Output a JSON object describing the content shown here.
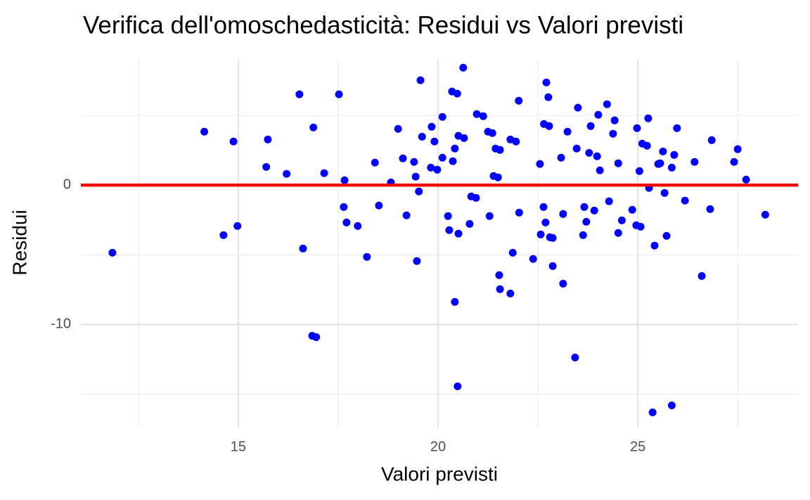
{
  "chart_data": {
    "type": "scatter",
    "title": "Verifica dell'omoschedasticità: Residui vs Valori previsti",
    "x_label": "Valori previsti",
    "y_label": "Residui",
    "xlim": [
      11.06,
      29.01
    ],
    "ylim": [
      -17.4,
      9.0
    ],
    "xticks": [
      15,
      20,
      25
    ],
    "yticks": [
      -10,
      0
    ],
    "x_minor_grid": [
      12.5,
      17.5,
      22.5,
      27.5
    ],
    "y_minor_grid": [
      -15,
      -5,
      5
    ],
    "grid": true,
    "hline": {
      "value": 0,
      "color": "#ff0000"
    },
    "series": [
      {
        "color": "#0000ff",
        "x": [
          11.85,
          14.15,
          14.63,
          14.88,
          14.98,
          15.7,
          15.74,
          16.21,
          16.53,
          16.62,
          16.88,
          16.85,
          16.95,
          17.15,
          17.52,
          17.66,
          17.64,
          17.71,
          17.99,
          18.22,
          18.42,
          18.52,
          18.82,
          19.0,
          19.12,
          19.21,
          19.4,
          19.44,
          19.47,
          19.56,
          19.52,
          19.6,
          19.84,
          19.82,
          19.91,
          19.98,
          20.11,
          20.11,
          20.25,
          20.28,
          20.35,
          20.37,
          20.42,
          20.42,
          20.48,
          20.51,
          20.51,
          20.49,
          20.63,
          20.65,
          20.79,
          20.83,
          20.95,
          20.97,
          21.13,
          21.25,
          21.36,
          21.29,
          21.39,
          21.44,
          21.5,
          21.53,
          21.55,
          21.55,
          21.81,
          21.81,
          21.87,
          21.95,
          22.02,
          22.03,
          22.38,
          22.55,
          22.57,
          22.64,
          22.65,
          22.69,
          22.71,
          22.76,
          22.78,
          22.8,
          22.87,
          22.87,
          23.08,
          23.13,
          23.13,
          23.24,
          23.43,
          23.47,
          23.5,
          23.63,
          23.66,
          23.71,
          23.78,
          23.82,
          23.91,
          23.98,
          24.01,
          24.05,
          24.23,
          24.28,
          24.38,
          24.42,
          24.51,
          24.51,
          24.6,
          24.86,
          24.98,
          24.96,
          25.04,
          25.07,
          25.11,
          25.23,
          25.26,
          25.28,
          25.37,
          25.42,
          25.51,
          25.56,
          25.63,
          25.67,
          25.72,
          25.85,
          25.85,
          25.91,
          25.98,
          26.18,
          26.42,
          26.6,
          26.81,
          26.85,
          27.41,
          27.5,
          27.71,
          28.19
        ],
        "values": [
          -4.85,
          3.84,
          -3.59,
          3.13,
          -2.93,
          1.31,
          3.28,
          0.81,
          6.52,
          -4.55,
          4.14,
          -10.81,
          -10.91,
          0.86,
          6.52,
          0.35,
          -1.57,
          -2.68,
          -2.93,
          -5.15,
          1.62,
          -1.46,
          0.2,
          4.04,
          1.92,
          -2.17,
          1.67,
          0.61,
          -5.45,
          7.53,
          -0.45,
          3.48,
          4.19,
          1.26,
          3.13,
          1.11,
          4.9,
          1.97,
          -2.22,
          -3.23,
          6.72,
          1.72,
          2.63,
          -8.38,
          6.57,
          3.54,
          -3.48,
          -14.44,
          8.43,
          3.38,
          -2.78,
          -0.81,
          -0.91,
          5.1,
          4.95,
          3.84,
          3.74,
          -2.22,
          0.66,
          2.63,
          0.56,
          -6.46,
          -7.47,
          2.53,
          -7.78,
          3.28,
          -4.85,
          3.13,
          6.06,
          -1.97,
          -5.3,
          1.52,
          -3.54,
          -1.57,
          4.39,
          -2.68,
          7.37,
          6.31,
          4.24,
          -3.74,
          -3.79,
          -5.81,
          1.97,
          -2.07,
          -7.07,
          3.84,
          -12.37,
          2.63,
          5.56,
          -3.59,
          -1.57,
          -2.63,
          2.32,
          4.24,
          -1.82,
          2.07,
          5.05,
          1.06,
          5.81,
          -1.16,
          3.69,
          4.65,
          1.57,
          -3.43,
          -2.53,
          -1.77,
          4.09,
          -2.88,
          1.01,
          -2.98,
          2.98,
          2.83,
          4.8,
          -0.2,
          -16.31,
          -4.34,
          1.52,
          1.57,
          2.42,
          -0.56,
          -3.64,
          1.26,
          -15.81,
          2.17,
          4.09,
          -1.11,
          1.67,
          -6.52,
          -1.72,
          3.23,
          1.67,
          2.58,
          0.4,
          -2.12
        ]
      }
    ]
  }
}
